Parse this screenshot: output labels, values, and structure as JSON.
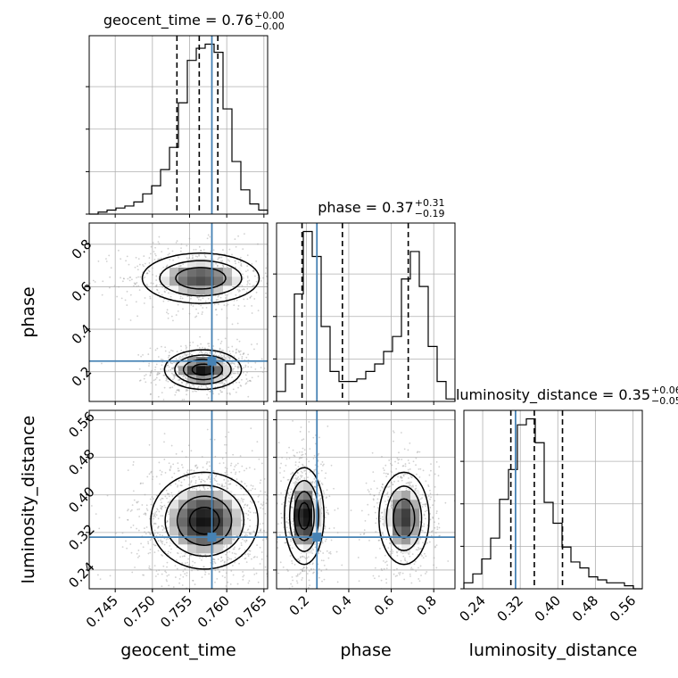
{
  "chart_data": {
    "type": "corner",
    "colors": {
      "truth": "#4682b4",
      "hist": "#000000",
      "grid": "#b0b0b0",
      "scatter": "#9a9a9a"
    },
    "parameters": [
      {
        "name": "geocent_time",
        "range": [
          0.7415,
          0.7655
        ],
        "ticks": [
          "0.745",
          "0.750",
          "0.755",
          "0.760",
          "0.765"
        ],
        "tick_values": [
          0.745,
          0.75,
          0.755,
          0.76,
          0.765
        ],
        "truth": 0.758,
        "quantiles": [
          0.7533,
          0.7563,
          0.7588
        ],
        "median": "0.76",
        "plus": "+0.00",
        "minus": "−0.00"
      },
      {
        "name": "phase",
        "range": [
          0.06,
          0.9
        ],
        "ticks": [
          "0.2",
          "0.4",
          "0.6",
          "0.8"
        ],
        "tick_values": [
          0.2,
          0.4,
          0.6,
          0.8
        ],
        "truth": 0.25,
        "quantiles": [
          0.18,
          0.37,
          0.68
        ],
        "median": "0.37",
        "plus": "+0.31",
        "minus": "−0.19"
      },
      {
        "name": "luminosity_distance",
        "range": [
          0.2,
          0.58
        ],
        "ticks": [
          "0.24",
          "0.32",
          "0.40",
          "0.48",
          "0.56"
        ],
        "tick_values": [
          0.24,
          0.32,
          0.4,
          0.48,
          0.56
        ],
        "truth": 0.31,
        "quantiles": [
          0.3,
          0.35,
          0.41
        ],
        "median": "0.35",
        "plus": "+0.06",
        "minus": "−0.05"
      }
    ],
    "histograms": [
      {
        "param": "geocent_time",
        "edges_range": [
          0.7415,
          0.7655
        ],
        "counts": [
          0,
          1,
          2,
          3,
          4,
          6,
          10,
          14,
          22,
          33,
          55,
          76,
          82,
          84,
          80,
          52,
          26,
          12,
          5,
          2
        ]
      },
      {
        "param": "phase",
        "edges_range": [
          0.06,
          0.9
        ],
        "counts": [
          4,
          15,
          43,
          68,
          58,
          30,
          12,
          8,
          8,
          9,
          12,
          15,
          20,
          26,
          49,
          60,
          46,
          22,
          8,
          1
        ]
      },
      {
        "param": "luminosity_distance",
        "edges_range": [
          0.2,
          0.58
        ],
        "counts": [
          2,
          5,
          10,
          17,
          30,
          40,
          55,
          57,
          49,
          29,
          22,
          14,
          9,
          7,
          4,
          3,
          2,
          2,
          1,
          0
        ]
      }
    ],
    "density_2d": [
      {
        "x": "geocent_time",
        "y": "phase",
        "modes": [
          {
            "cx": 0.7568,
            "cy": 0.21,
            "sx": 0.0025,
            "sy": 0.045,
            "weight": 0.55
          },
          {
            "cx": 0.7565,
            "cy": 0.64,
            "sx": 0.004,
            "sy": 0.06,
            "weight": 0.45
          }
        ]
      },
      {
        "x": "geocent_time",
        "y": "luminosity_distance",
        "modes": [
          {
            "cx": 0.757,
            "cy": 0.345,
            "sx": 0.0035,
            "sy": 0.05,
            "weight": 1.0
          }
        ]
      },
      {
        "x": "phase",
        "y": "luminosity_distance",
        "modes": [
          {
            "cx": 0.19,
            "cy": 0.355,
            "sx": 0.045,
            "sy": 0.05,
            "weight": 0.55
          },
          {
            "cx": 0.66,
            "cy": 0.35,
            "sx": 0.06,
            "sy": 0.05,
            "weight": 0.45
          }
        ]
      }
    ]
  }
}
